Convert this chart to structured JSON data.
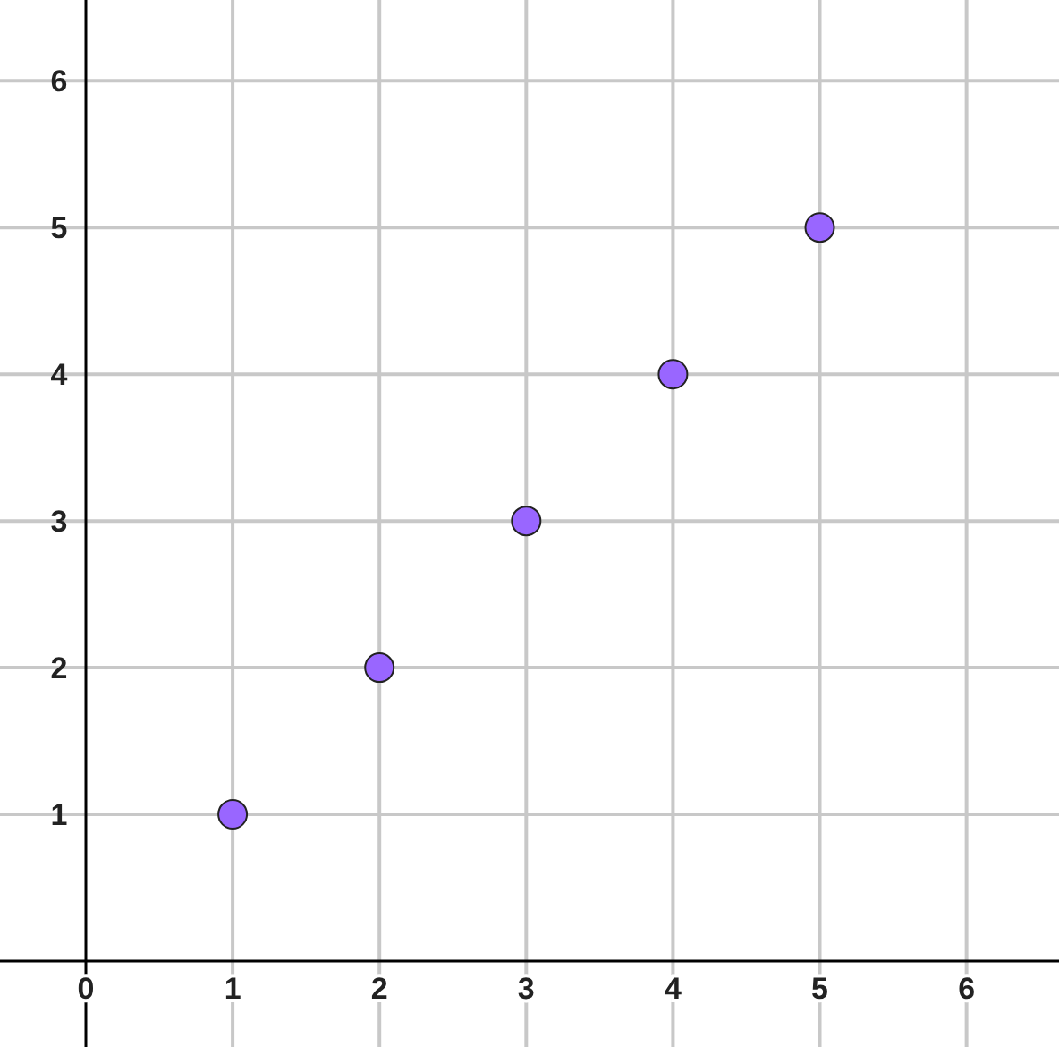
{
  "chart_data": {
    "type": "scatter",
    "x": [
      1,
      2,
      3,
      4,
      5
    ],
    "series": [
      {
        "color": "#9966ff",
        "values": [
          1,
          2,
          3,
          4,
          5
        ]
      }
    ],
    "xlim": [
      -0.585,
      6.63
    ],
    "ylim": [
      -0.585,
      6.55
    ],
    "xticks": [
      0,
      1,
      2,
      3,
      4,
      5,
      6
    ],
    "yticks": [
      {
        "value": 0,
        "label": null
      },
      1,
      2,
      3,
      4,
      5,
      6
    ],
    "grid": true,
    "marker": "circle"
  }
}
